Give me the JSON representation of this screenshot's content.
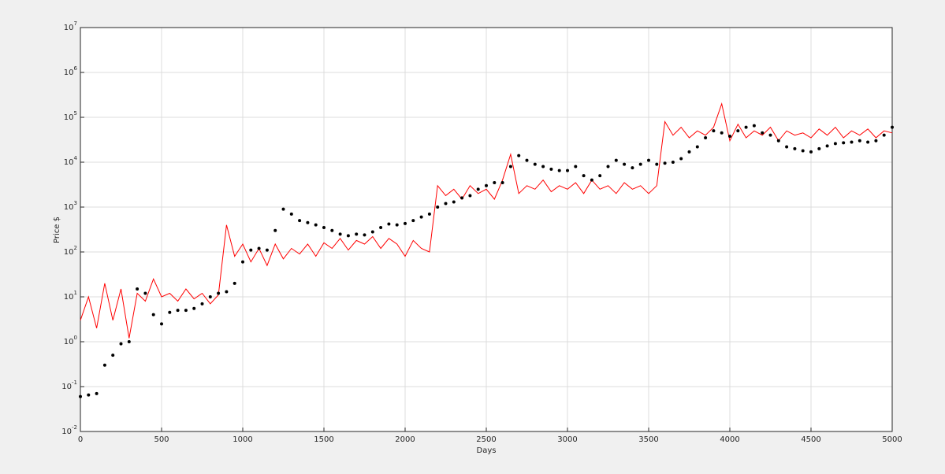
{
  "chart_data": {
    "type": "line",
    "xlabel": "Days",
    "ylabel": "Price $",
    "xlim": [
      0,
      5000
    ],
    "xticks": [
      0,
      500,
      1000,
      1500,
      2000,
      2500,
      3000,
      3500,
      4000,
      4500,
      5000
    ],
    "ylim": [
      0.01,
      10000000
    ],
    "yscale": "log",
    "yticks": [
      {
        "value": 0.01,
        "label": "10^-2"
      },
      {
        "value": 0.1,
        "label": "10^-1"
      },
      {
        "value": 1,
        "label": "10^0"
      },
      {
        "value": 10,
        "label": "10^1"
      },
      {
        "value": 100,
        "label": "10^2"
      },
      {
        "value": 1000,
        "label": "10^3"
      },
      {
        "value": 10000,
        "label": "10^4"
      },
      {
        "value": 100000,
        "label": "10^5"
      },
      {
        "value": 1000000,
        "label": "10^6"
      },
      {
        "value": 10000000,
        "label": "10^7"
      }
    ],
    "grid": true,
    "x": [
      0,
      50,
      100,
      150,
      200,
      250,
      300,
      350,
      400,
      450,
      500,
      550,
      600,
      650,
      700,
      750,
      800,
      850,
      900,
      950,
      1000,
      1050,
      1100,
      1150,
      1200,
      1250,
      1300,
      1350,
      1400,
      1450,
      1500,
      1550,
      1600,
      1650,
      1700,
      1750,
      1800,
      1850,
      1900,
      1950,
      2000,
      2050,
      2100,
      2150,
      2200,
      2250,
      2300,
      2350,
      2400,
      2450,
      2500,
      2550,
      2600,
      2650,
      2700,
      2750,
      2800,
      2850,
      2900,
      2950,
      3000,
      3050,
      3100,
      3150,
      3200,
      3250,
      3300,
      3350,
      3400,
      3450,
      3500,
      3550,
      3600,
      3650,
      3700,
      3750,
      3800,
      3850,
      3900,
      3950,
      4000,
      4050,
      4100,
      4150,
      4200,
      4250,
      4300,
      4350,
      4400,
      4450,
      4500,
      4550,
      4600,
      4650,
      4700,
      4750,
      4800,
      4850,
      4900,
      4950,
      5000
    ],
    "series": [
      {
        "color": "#ff0000",
        "style": "line",
        "values": [
          3,
          10,
          2,
          20,
          3,
          15,
          1.2,
          12,
          8,
          25,
          10,
          12,
          8,
          15,
          9,
          12,
          7,
          11,
          400,
          80,
          150,
          60,
          120,
          50,
          150,
          70,
          120,
          90,
          150,
          80,
          160,
          120,
          200,
          110,
          180,
          150,
          220,
          120,
          200,
          150,
          80,
          180,
          120,
          100,
          3000,
          1800,
          2500,
          1500,
          3000,
          2000,
          2500,
          1500,
          4000,
          15000,
          2000,
          3000,
          2500,
          4000,
          2200,
          3000,
          2500,
          3500,
          2000,
          4000,
          2500,
          3000,
          2000,
          3500,
          2500,
          3000,
          2000,
          3000,
          80000,
          40000,
          60000,
          35000,
          50000,
          40000,
          60000,
          200000,
          30000,
          70000,
          35000,
          50000,
          40000,
          60000,
          30000,
          50000,
          40000,
          45000,
          35000,
          55000,
          40000,
          60000,
          35000,
          50000,
          40000,
          55000,
          35000,
          50000,
          45000
        ]
      },
      {
        "color": "#000000",
        "style": "markers",
        "values": [
          0.06,
          0.065,
          0.07,
          0.3,
          0.5,
          0.9,
          1.0,
          15,
          12,
          4,
          2.5,
          4.5,
          5,
          5,
          5.5,
          7,
          10,
          12,
          13,
          20,
          60,
          110,
          120,
          110,
          300,
          900,
          700,
          500,
          450,
          400,
          350,
          300,
          250,
          230,
          250,
          240,
          280,
          350,
          420,
          400,
          430,
          500,
          600,
          700,
          1000,
          1200,
          1300,
          1600,
          1800,
          2500,
          3000,
          3500,
          3500,
          8000,
          14000,
          11000,
          9000,
          8000,
          7000,
          6500,
          6500,
          8000,
          5000,
          4000,
          5000,
          8000,
          11000,
          9000,
          7500,
          9000,
          11000,
          9000,
          9500,
          10000,
          12000,
          17000,
          22000,
          35000,
          50000,
          45000,
          38000,
          50000,
          60000,
          65000,
          45000,
          40000,
          30000,
          22000,
          20000,
          18000,
          17000,
          20000,
          23000,
          26000,
          27000,
          28000,
          30000,
          28000,
          30000,
          40000,
          60000
        ]
      }
    ]
  }
}
